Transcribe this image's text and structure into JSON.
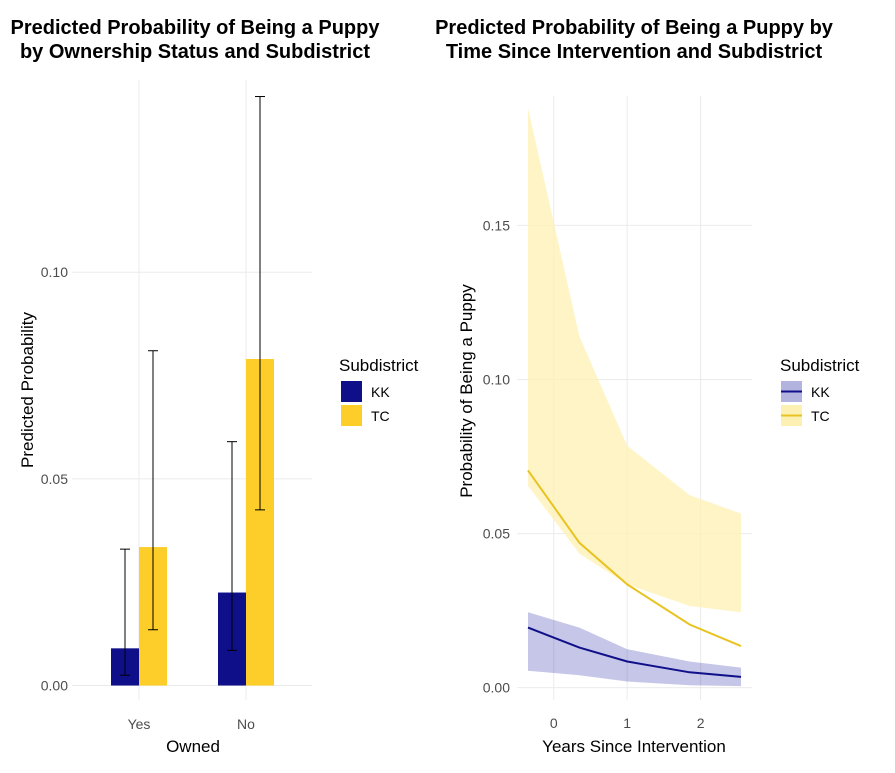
{
  "chart_data": [
    {
      "type": "bar",
      "title_lines": [
        "Predicted Probability of Being a Puppy",
        "by Ownership Status and Subdistrict"
      ],
      "xlabel": "Owned",
      "ylabel": "Predicted Probability",
      "categories": [
        "Yes",
        "No"
      ],
      "yticks": [
        0.0,
        0.05,
        0.1
      ],
      "ytick_labels": [
        "0.00",
        "0.05",
        "0.10"
      ],
      "ylim": [
        -0.0035,
        0.1465
      ],
      "grid": true,
      "legend": {
        "title": "Subdistrict",
        "position": "right"
      },
      "series": [
        {
          "name": "KK",
          "color": "#0f0f8a",
          "values": [
            0.009,
            0.0225
          ],
          "err_low": [
            0.0025,
            0.0085
          ],
          "err_high": [
            0.033,
            0.059
          ]
        },
        {
          "name": "TC",
          "color": "#fdcd2a",
          "values": [
            0.0335,
            0.079
          ],
          "err_low": [
            0.0135,
            0.0425
          ],
          "err_high": [
            0.081,
            0.1425
          ]
        }
      ]
    },
    {
      "type": "line",
      "title_lines": [
        "Predicted Probability of Being a Puppy by",
        "Time Since Intervention and Subdistrict"
      ],
      "xlabel": "Years Since Intervention",
      "ylabel": "Probability of Being a Puppy",
      "xticks": [
        0,
        1,
        2
      ],
      "xtick_labels": [
        "0",
        "1",
        "2"
      ],
      "yticks": [
        0.0,
        0.05,
        0.1,
        0.15
      ],
      "ytick_labels": [
        "0.00",
        "0.05",
        "0.10",
        "0.15"
      ],
      "xlim": [
        -0.5,
        2.7
      ],
      "ylim": [
        -0.004,
        0.192
      ],
      "grid": true,
      "legend": {
        "title": "Subdistrict",
        "position": "right"
      },
      "series": [
        {
          "name": "KK",
          "color": "#0f0f8a",
          "ribbon_color": "#b3b3e0",
          "x": [
            -0.35,
            0.35,
            1.0,
            1.85,
            2.55
          ],
          "y": [
            0.0195,
            0.013,
            0.0085,
            0.005,
            0.0035
          ],
          "lower": [
            0.0055,
            0.004,
            0.002,
            0.0008,
            0.0005
          ],
          "upper": [
            0.0245,
            0.0195,
            0.0125,
            0.0085,
            0.0065
          ]
        },
        {
          "name": "TC",
          "color": "#e8c321",
          "ribbon_color": "#fdf0b3",
          "x": [
            -0.35,
            0.35,
            1.0,
            1.85,
            2.55
          ],
          "y": [
            0.0705,
            0.047,
            0.0335,
            0.0205,
            0.0135
          ],
          "lower": [
            0.0655,
            0.0435,
            0.0335,
            0.0265,
            0.0245
          ],
          "upper": [
            0.188,
            0.114,
            0.0785,
            0.0625,
            0.0565
          ]
        }
      ]
    }
  ]
}
